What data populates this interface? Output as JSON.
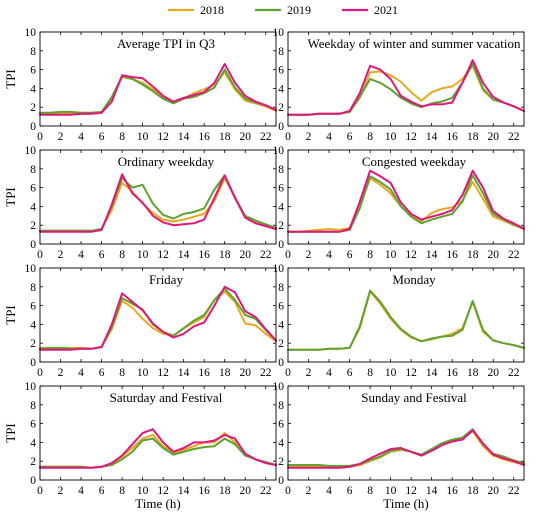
{
  "legend": [
    {
      "name": "2018",
      "color": "#e8a91e"
    },
    {
      "name": "2019",
      "color": "#5ea22f"
    },
    {
      "name": "2021",
      "color": "#e0177f"
    }
  ],
  "xlabel": "Time (h)",
  "ylabel": "TPI",
  "chart_data": [
    {
      "type": "line",
      "title": "Average TPI in Q3",
      "x": [
        0,
        1,
        2,
        3,
        4,
        5,
        6,
        7,
        8,
        9,
        10,
        11,
        12,
        13,
        14,
        15,
        16,
        17,
        18,
        19,
        20,
        21,
        22,
        23
      ],
      "xlim": [
        0,
        23
      ],
      "ylim": [
        0,
        10
      ],
      "xticks": [
        0,
        2,
        4,
        6,
        8,
        10,
        12,
        14,
        16,
        18,
        20,
        22
      ],
      "yticks": [
        0,
        2,
        4,
        6,
        8,
        10
      ],
      "series": [
        {
          "name": "2018",
          "values": [
            1.3,
            1.3,
            1.3,
            1.3,
            1.3,
            1.3,
            1.4,
            3.0,
            5.2,
            5.0,
            4.6,
            3.9,
            3.0,
            2.4,
            2.9,
            3.5,
            3.9,
            4.4,
            5.7,
            3.9,
            2.7,
            2.4,
            2.1,
            1.6
          ]
        },
        {
          "name": "2019",
          "values": [
            1.4,
            1.4,
            1.5,
            1.5,
            1.4,
            1.4,
            1.5,
            3.1,
            5.3,
            5.0,
            4.4,
            3.7,
            2.9,
            2.4,
            2.9,
            3.1,
            3.5,
            4.1,
            6.0,
            4.1,
            2.9,
            2.5,
            2.2,
            1.7
          ]
        },
        {
          "name": "2021",
          "values": [
            1.2,
            1.2,
            1.2,
            1.2,
            1.3,
            1.3,
            1.4,
            2.6,
            5.4,
            5.2,
            5.1,
            4.2,
            3.2,
            2.6,
            3.0,
            3.3,
            3.6,
            4.6,
            6.6,
            4.6,
            3.2,
            2.6,
            2.2,
            1.7
          ]
        }
      ]
    },
    {
      "type": "line",
      "title": "Weekday of winter and summer vacation",
      "x": [
        0,
        1,
        2,
        3,
        4,
        5,
        6,
        7,
        8,
        9,
        10,
        11,
        12,
        13,
        14,
        15,
        16,
        17,
        18,
        19,
        20,
        21,
        22,
        23
      ],
      "xlim": [
        0,
        23
      ],
      "ylim": [
        0,
        10
      ],
      "xticks": [
        0,
        2,
        4,
        6,
        8,
        10,
        12,
        14,
        16,
        18,
        20,
        22
      ],
      "yticks": [
        0,
        2,
        4,
        6,
        8,
        10
      ],
      "series": [
        {
          "name": "2018",
          "values": [
            1.2,
            1.2,
            1.2,
            1.3,
            1.3,
            1.3,
            1.5,
            3.0,
            5.7,
            5.8,
            5.4,
            4.7,
            3.6,
            2.7,
            3.6,
            4.0,
            4.2,
            5.0,
            6.4,
            3.8,
            2.8,
            2.5,
            2.1,
            1.6
          ]
        },
        {
          "name": "2019",
          "values": [
            1.2,
            1.2,
            1.2,
            1.3,
            1.3,
            1.3,
            1.5,
            3.1,
            5.0,
            4.6,
            3.9,
            3.0,
            2.4,
            2.0,
            2.4,
            2.6,
            3.0,
            4.6,
            6.6,
            4.0,
            2.8,
            2.5,
            2.1,
            1.6
          ]
        },
        {
          "name": "2021",
          "values": [
            1.2,
            1.2,
            1.2,
            1.3,
            1.3,
            1.3,
            1.6,
            3.5,
            6.4,
            6.0,
            5.0,
            3.2,
            2.6,
            2.1,
            2.3,
            2.3,
            2.5,
            4.6,
            7.0,
            4.6,
            3.1,
            2.5,
            2.1,
            1.6
          ]
        }
      ]
    },
    {
      "type": "line",
      "title": "Ordinary weekday",
      "x": [
        0,
        1,
        2,
        3,
        4,
        5,
        6,
        7,
        8,
        9,
        10,
        11,
        12,
        13,
        14,
        15,
        16,
        17,
        18,
        19,
        20,
        21,
        22,
        23
      ],
      "xlim": [
        0,
        23
      ],
      "ylim": [
        0,
        10
      ],
      "xticks": [
        0,
        2,
        4,
        6,
        8,
        10,
        12,
        14,
        16,
        18,
        20,
        22
      ],
      "yticks": [
        0,
        2,
        4,
        6,
        8,
        10
      ],
      "series": [
        {
          "name": "2018",
          "values": [
            1.4,
            1.4,
            1.4,
            1.4,
            1.4,
            1.4,
            1.6,
            3.6,
            6.5,
            5.6,
            4.3,
            3.3,
            2.6,
            2.4,
            2.6,
            2.9,
            3.2,
            4.6,
            7.0,
            5.0,
            2.9,
            2.4,
            2.0,
            1.6
          ]
        },
        {
          "name": "2019",
          "values": [
            1.4,
            1.4,
            1.4,
            1.4,
            1.4,
            1.4,
            1.6,
            4.0,
            7.0,
            6.0,
            6.3,
            4.3,
            3.1,
            2.7,
            3.2,
            3.4,
            3.8,
            5.8,
            7.3,
            4.9,
            3.0,
            2.5,
            2.1,
            1.7
          ]
        },
        {
          "name": "2021",
          "values": [
            1.3,
            1.3,
            1.3,
            1.3,
            1.3,
            1.3,
            1.5,
            4.2,
            7.4,
            5.4,
            4.4,
            3.0,
            2.3,
            2.0,
            2.1,
            2.2,
            2.6,
            4.9,
            7.3,
            4.9,
            2.8,
            2.2,
            1.9,
            1.6
          ]
        }
      ]
    },
    {
      "type": "line",
      "title": "Congested weekday",
      "x": [
        0,
        1,
        2,
        3,
        4,
        5,
        6,
        7,
        8,
        9,
        10,
        11,
        12,
        13,
        14,
        15,
        16,
        17,
        18,
        19,
        20,
        21,
        22,
        23
      ],
      "xlim": [
        0,
        23
      ],
      "ylim": [
        0,
        10
      ],
      "xticks": [
        0,
        2,
        4,
        6,
        8,
        10,
        12,
        14,
        16,
        18,
        20,
        22
      ],
      "yticks": [
        0,
        2,
        4,
        6,
        8,
        10
      ],
      "series": [
        {
          "name": "2018",
          "values": [
            1.3,
            1.3,
            1.4,
            1.5,
            1.6,
            1.5,
            1.7,
            4.0,
            7.0,
            6.3,
            5.4,
            4.0,
            3.0,
            2.4,
            3.3,
            3.7,
            3.9,
            4.6,
            6.6,
            4.8,
            2.9,
            2.5,
            2.0,
            1.6
          ]
        },
        {
          "name": "2019",
          "values": [
            1.3,
            1.3,
            1.3,
            1.3,
            1.3,
            1.3,
            1.5,
            3.8,
            7.2,
            6.6,
            5.8,
            4.0,
            2.9,
            2.2,
            2.6,
            2.9,
            3.2,
            4.5,
            7.3,
            5.4,
            3.2,
            2.6,
            2.1,
            1.7
          ]
        },
        {
          "name": "2021",
          "values": [
            1.3,
            1.3,
            1.3,
            1.3,
            1.3,
            1.3,
            1.6,
            4.5,
            7.8,
            7.2,
            6.5,
            4.4,
            3.2,
            2.6,
            2.9,
            3.2,
            3.6,
            5.2,
            7.8,
            6.0,
            3.5,
            2.7,
            2.2,
            1.6
          ]
        }
      ]
    },
    {
      "type": "line",
      "title": "Friday",
      "x": [
        0,
        1,
        2,
        3,
        4,
        5,
        6,
        7,
        8,
        9,
        10,
        11,
        12,
        13,
        14,
        15,
        16,
        17,
        18,
        19,
        20,
        21,
        22,
        23
      ],
      "xlim": [
        0,
        23
      ],
      "ylim": [
        0,
        10
      ],
      "xticks": [
        0,
        2,
        4,
        6,
        8,
        10,
        12,
        14,
        16,
        18,
        20,
        22
      ],
      "yticks": [
        0,
        2,
        4,
        6,
        8,
        10
      ],
      "series": [
        {
          "name": "2018",
          "values": [
            1.5,
            1.5,
            1.5,
            1.5,
            1.5,
            1.4,
            1.6,
            3.5,
            6.5,
            5.8,
            4.6,
            3.6,
            3.0,
            2.8,
            3.6,
            4.2,
            4.8,
            6.6,
            7.5,
            6.4,
            4.1,
            3.9,
            3.0,
            2.2
          ]
        },
        {
          "name": "2019",
          "values": [
            1.4,
            1.5,
            1.5,
            1.4,
            1.4,
            1.4,
            1.6,
            3.7,
            6.8,
            6.2,
            5.6,
            4.0,
            3.2,
            2.8,
            3.6,
            4.4,
            5.0,
            6.6,
            7.8,
            6.6,
            5.0,
            4.6,
            3.4,
            2.3
          ]
        },
        {
          "name": "2021",
          "values": [
            1.3,
            1.3,
            1.3,
            1.3,
            1.4,
            1.4,
            1.6,
            4.0,
            7.3,
            6.4,
            5.5,
            4.1,
            3.2,
            2.6,
            3.0,
            3.8,
            4.2,
            6.0,
            8.0,
            7.4,
            5.4,
            4.8,
            3.5,
            2.3
          ]
        }
      ]
    },
    {
      "type": "line",
      "title": "Monday",
      "x": [
        0,
        1,
        2,
        3,
        4,
        5,
        6,
        7,
        8,
        9,
        10,
        11,
        12,
        13,
        14,
        15,
        16,
        17,
        18,
        19,
        20,
        21,
        22,
        23
      ],
      "xlim": [
        0,
        23
      ],
      "ylim": [
        0,
        10
      ],
      "xticks": [
        0,
        2,
        4,
        6,
        8,
        10,
        12,
        14,
        16,
        18,
        20,
        22
      ],
      "yticks": [
        0,
        2,
        4,
        6,
        8,
        10
      ],
      "series": [
        {
          "name": "2018",
          "values": [
            1.3,
            1.3,
            1.3,
            1.3,
            1.4,
            1.4,
            1.5,
            3.6,
            7.5,
            6.2,
            4.6,
            3.4,
            2.6,
            2.2,
            2.4,
            2.7,
            3.0,
            3.6,
            6.4,
            3.2,
            2.3,
            2.0,
            1.8,
            1.5
          ]
        },
        {
          "name": "2019",
          "values": [
            1.3,
            1.3,
            1.3,
            1.3,
            1.4,
            1.4,
            1.5,
            3.8,
            7.6,
            6.4,
            4.8,
            3.5,
            2.7,
            2.2,
            2.5,
            2.7,
            2.8,
            3.4,
            6.5,
            3.4,
            2.3,
            2.0,
            1.8,
            1.5
          ]
        }
      ]
    },
    {
      "type": "line",
      "title": "Saturday and Festival",
      "x": [
        0,
        1,
        2,
        3,
        4,
        5,
        6,
        7,
        8,
        9,
        10,
        11,
        12,
        13,
        14,
        15,
        16,
        17,
        18,
        19,
        20,
        21,
        22,
        23
      ],
      "xlim": [
        0,
        23
      ],
      "ylim": [
        0,
        10
      ],
      "xticks": [
        0,
        2,
        4,
        6,
        8,
        10,
        12,
        14,
        16,
        18,
        20,
        22
      ],
      "yticks": [
        0,
        2,
        4,
        6,
        8,
        10
      ],
      "series": [
        {
          "name": "2018",
          "values": [
            1.4,
            1.4,
            1.4,
            1.4,
            1.4,
            1.3,
            1.4,
            1.7,
            2.5,
            3.4,
            4.4,
            4.8,
            3.6,
            2.9,
            3.2,
            3.6,
            4.0,
            4.0,
            5.0,
            4.0,
            2.7,
            2.2,
            1.9,
            1.6
          ]
        },
        {
          "name": "2019",
          "values": [
            1.4,
            1.4,
            1.4,
            1.4,
            1.4,
            1.3,
            1.4,
            1.6,
            2.2,
            3.0,
            4.2,
            4.4,
            3.4,
            2.7,
            3.0,
            3.3,
            3.5,
            3.6,
            4.4,
            3.8,
            2.6,
            2.2,
            1.9,
            1.6
          ]
        },
        {
          "name": "2021",
          "values": [
            1.3,
            1.3,
            1.3,
            1.3,
            1.3,
            1.3,
            1.4,
            1.8,
            2.6,
            3.8,
            5.0,
            5.4,
            4.0,
            3.0,
            3.4,
            4.0,
            4.0,
            4.2,
            4.8,
            4.4,
            2.8,
            2.2,
            1.8,
            1.6
          ]
        }
      ]
    },
    {
      "type": "line",
      "title": "Sunday and Festival",
      "x": [
        0,
        1,
        2,
        3,
        4,
        5,
        6,
        7,
        8,
        9,
        10,
        11,
        12,
        13,
        14,
        15,
        16,
        17,
        18,
        19,
        20,
        21,
        22,
        23
      ],
      "xlim": [
        0,
        23
      ],
      "ylim": [
        0,
        10
      ],
      "xticks": [
        0,
        2,
        4,
        6,
        8,
        10,
        12,
        14,
        16,
        18,
        20,
        22
      ],
      "yticks": [
        0,
        2,
        4,
        6,
        8,
        10
      ],
      "series": [
        {
          "name": "2018",
          "values": [
            1.4,
            1.4,
            1.4,
            1.4,
            1.4,
            1.3,
            1.4,
            1.6,
            2.0,
            2.4,
            3.0,
            3.2,
            3.0,
            2.6,
            3.2,
            3.8,
            4.2,
            4.4,
            5.2,
            3.6,
            2.6,
            2.2,
            1.9,
            1.7
          ]
        },
        {
          "name": "2019",
          "values": [
            1.6,
            1.6,
            1.6,
            1.6,
            1.5,
            1.5,
            1.5,
            1.7,
            2.1,
            2.5,
            3.1,
            3.3,
            3.0,
            2.7,
            3.3,
            3.9,
            4.3,
            4.5,
            5.4,
            3.8,
            2.8,
            2.5,
            2.1,
            1.8
          ]
        },
        {
          "name": "2021",
          "values": [
            1.3,
            1.3,
            1.3,
            1.3,
            1.3,
            1.3,
            1.4,
            1.7,
            2.3,
            2.8,
            3.3,
            3.4,
            3.0,
            2.6,
            3.1,
            3.7,
            4.1,
            4.3,
            5.3,
            3.9,
            2.7,
            2.3,
            2.0,
            1.6
          ]
        }
      ]
    }
  ]
}
